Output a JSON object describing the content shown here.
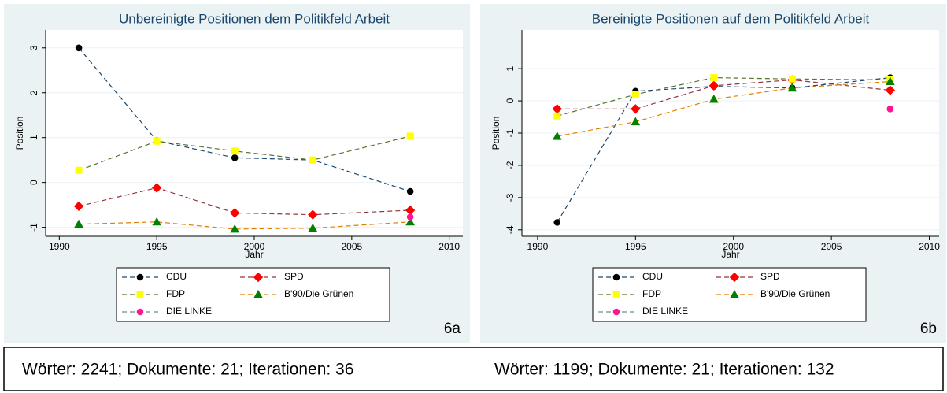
{
  "chart_data": [
    {
      "type": "line",
      "title": "Unbereinigte Positionen dem Politikfeld Arbeit",
      "x_label": "Jahr",
      "y_label": "Position",
      "panel_label": "6a",
      "x": [
        1991,
        1995,
        1999,
        2003,
        2008
      ],
      "xlim": [
        1989.3,
        2010.7
      ],
      "xticks": [
        1990,
        1995,
        2000,
        2005,
        2010
      ],
      "ylim": [
        -1.2,
        3.4
      ],
      "yticks": [
        -1,
        0,
        1,
        2,
        3
      ],
      "grid": true,
      "series": [
        {
          "name": "CDU",
          "color": "#000000",
          "line_color": "#1a476f",
          "marker": "circle",
          "values": [
            3.0,
            0.93,
            0.55,
            0.5,
            -0.2
          ]
        },
        {
          "name": "SPD",
          "color": "#ff0000",
          "line_color": "#90353b",
          "marker": "diamond",
          "values": [
            -0.53,
            -0.12,
            -0.68,
            -0.72,
            -0.62
          ]
        },
        {
          "name": "FDP",
          "color": "#ffff00",
          "line_color": "#55752f",
          "marker": "square",
          "values": [
            0.27,
            0.92,
            0.7,
            0.5,
            1.03
          ]
        },
        {
          "name": "B'90/Die Grünen",
          "color": "#008000",
          "line_color": "#e37e00",
          "marker": "triangle",
          "values": [
            -0.93,
            -0.88,
            -1.04,
            -1.02,
            -0.88
          ]
        },
        {
          "name": "DIE LINKE",
          "color": "#ff1493",
          "line_color": "#6e8e84",
          "marker": "circle",
          "values": [
            null,
            null,
            null,
            null,
            -0.77
          ]
        }
      ]
    },
    {
      "type": "line",
      "title": "Bereinigte Positionen auf dem Politikfeld Arbeit",
      "x_label": "Jahr",
      "y_label": "Position",
      "panel_label": "6b",
      "x": [
        1991,
        1995,
        1999,
        2003,
        2008
      ],
      "xlim": [
        1989.2,
        2010.5
      ],
      "xticks": [
        1990,
        1995,
        2000,
        2005,
        2010
      ],
      "ylim": [
        -4.2,
        2.2
      ],
      "yticks": [
        -4,
        -3,
        -2,
        -1,
        0,
        1
      ],
      "grid": true,
      "series": [
        {
          "name": "CDU",
          "color": "#000000",
          "line_color": "#1a476f",
          "marker": "circle",
          "values": [
            -3.77,
            0.3,
            0.45,
            0.4,
            0.72
          ]
        },
        {
          "name": "SPD",
          "color": "#ff0000",
          "line_color": "#90353b",
          "marker": "diamond",
          "values": [
            -0.25,
            -0.25,
            0.47,
            0.65,
            0.33
          ]
        },
        {
          "name": "FDP",
          "color": "#ffff00",
          "line_color": "#55752f",
          "marker": "square",
          "values": [
            -0.47,
            0.2,
            0.72,
            0.68,
            0.65
          ]
        },
        {
          "name": "B'90/Die Grünen",
          "color": "#008000",
          "line_color": "#e37e00",
          "marker": "triangle",
          "values": [
            -1.1,
            -0.65,
            0.05,
            0.4,
            0.6
          ]
        },
        {
          "name": "DIE LINKE",
          "color": "#ff1493",
          "line_color": "#6e8e84",
          "marker": "circle",
          "values": [
            null,
            null,
            null,
            null,
            -0.25
          ]
        }
      ]
    }
  ],
  "footer": [
    "Wörter: 2241; Dokumente: 21; Iterationen: 36",
    "Wörter: 1199; Dokumente: 21; Iterationen: 132"
  ]
}
